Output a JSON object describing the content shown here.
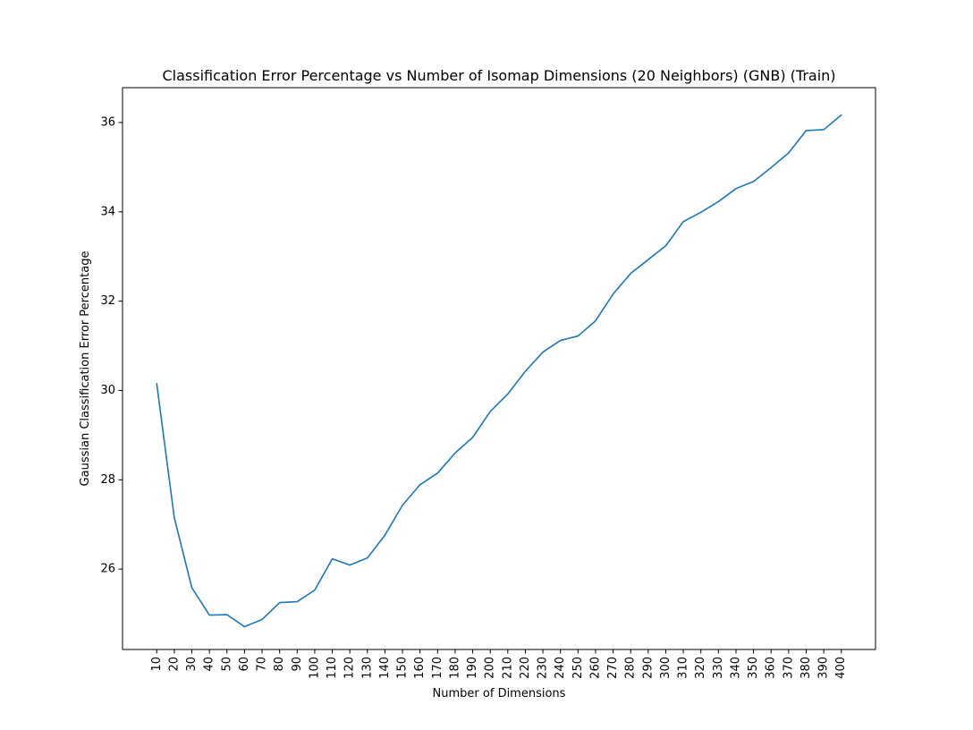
{
  "chart_data": {
    "type": "line",
    "title": "Classification Error Percentage vs Number of Isomap Dimensions (20 Neighbors) (GNB) (Train)",
    "xlabel": "Number of Dimensions",
    "ylabel": "Gaussian Classification Error Percentage",
    "x": [
      10,
      20,
      30,
      40,
      50,
      60,
      70,
      80,
      90,
      100,
      110,
      120,
      130,
      140,
      150,
      160,
      170,
      180,
      190,
      200,
      210,
      220,
      230,
      240,
      250,
      260,
      270,
      280,
      290,
      300,
      310,
      320,
      330,
      340,
      350,
      360,
      370,
      380,
      390,
      400
    ],
    "series": [
      {
        "name": "",
        "color": "#1f77b4",
        "values": [
          30.15,
          27.15,
          25.58,
          24.97,
          24.98,
          24.71,
          24.87,
          25.25,
          25.27,
          25.53,
          26.23,
          26.09,
          26.25,
          26.76,
          27.43,
          27.89,
          28.15,
          28.6,
          28.95,
          29.53,
          29.92,
          30.43,
          30.86,
          31.12,
          31.22,
          31.56,
          32.16,
          32.62,
          32.93,
          33.24,
          33.78,
          33.99,
          34.23,
          34.52,
          34.68,
          34.99,
          35.32,
          35.82,
          35.84,
          36.17
        ]
      }
    ],
    "xticks": [
      10,
      20,
      30,
      40,
      50,
      60,
      70,
      80,
      90,
      100,
      110,
      120,
      130,
      140,
      150,
      160,
      170,
      180,
      190,
      200,
      210,
      220,
      230,
      240,
      250,
      260,
      270,
      280,
      290,
      300,
      310,
      320,
      330,
      340,
      350,
      360,
      370,
      380,
      390,
      400
    ],
    "yticks": [
      26,
      28,
      30,
      32,
      34,
      36
    ],
    "xlim": [
      -9.5,
      419.5
    ],
    "ylim": [
      24.2,
      36.78
    ],
    "grid": false,
    "legend": "none"
  }
}
